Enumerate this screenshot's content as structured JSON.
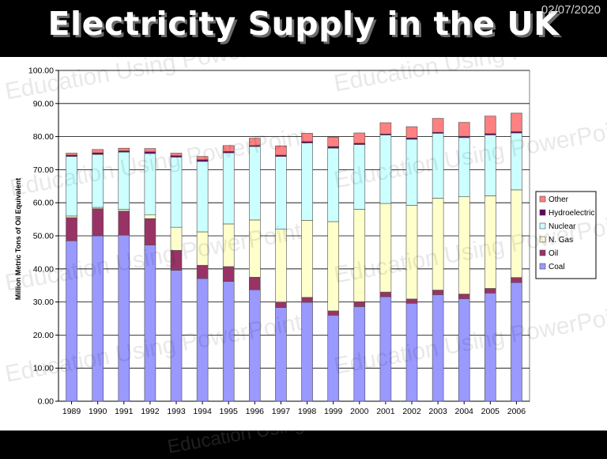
{
  "slide": {
    "title": "Electricity Supply in the UK",
    "date": "02/07/2020",
    "watermark_text": "Education Using PowerPoint"
  },
  "chart_data": {
    "type": "bar",
    "stacked": true,
    "ylabel": "Million Metric Tons of Oil Equivalent",
    "xlabel": "",
    "title": "",
    "ylim": [
      0,
      100
    ],
    "ytick_step": 10,
    "grid": true,
    "legend_position": "right",
    "categories": [
      "1989",
      "1990",
      "1991",
      "1992",
      "1993",
      "1994",
      "1995",
      "1996",
      "1997",
      "1998",
      "1999",
      "2000",
      "2001",
      "2002",
      "2003",
      "2004",
      "2005",
      "2006"
    ],
    "series": [
      {
        "name": "Coal",
        "color": "#9999ff",
        "values": [
          48.5,
          50.0,
          50.2,
          47.2,
          39.6,
          37.1,
          36.2,
          33.7,
          28.3,
          29.9,
          26.0,
          28.6,
          31.6,
          29.6,
          32.2,
          31.0,
          32.7,
          35.9
        ]
      },
      {
        "name": "Oil",
        "color": "#993366",
        "values": [
          7.0,
          8.2,
          7.3,
          8.0,
          6.0,
          4.0,
          4.5,
          3.8,
          1.7,
          1.5,
          1.3,
          1.5,
          1.4,
          1.3,
          1.4,
          1.4,
          1.4,
          1.5
        ]
      },
      {
        "name": "N. Gas",
        "color": "#ffffcc",
        "values": [
          0.5,
          0.4,
          0.5,
          1.2,
          7.0,
          10.1,
          12.9,
          17.3,
          22.0,
          23.3,
          27.0,
          27.9,
          26.8,
          28.3,
          27.8,
          29.4,
          28.0,
          26.5
        ]
      },
      {
        "name": "Nuclear",
        "color": "#ccffff",
        "values": [
          18.0,
          16.0,
          17.3,
          18.5,
          21.2,
          21.3,
          21.5,
          22.2,
          22.0,
          23.4,
          22.2,
          19.6,
          20.7,
          20.0,
          19.6,
          17.9,
          18.4,
          17.2
        ]
      },
      {
        "name": "Hydroelectric",
        "color": "#660066",
        "values": [
          0.4,
          0.5,
          0.4,
          0.5,
          0.4,
          0.5,
          0.4,
          0.3,
          0.4,
          0.4,
          0.5,
          0.4,
          0.3,
          0.4,
          0.3,
          0.4,
          0.4,
          0.4
        ]
      },
      {
        "name": "Other",
        "color": "#ff8080",
        "values": [
          0.6,
          1.0,
          0.8,
          1.0,
          0.8,
          1.0,
          1.8,
          2.2,
          2.8,
          2.5,
          2.8,
          3.1,
          3.4,
          3.4,
          4.2,
          4.2,
          5.3,
          5.6
        ]
      }
    ]
  }
}
